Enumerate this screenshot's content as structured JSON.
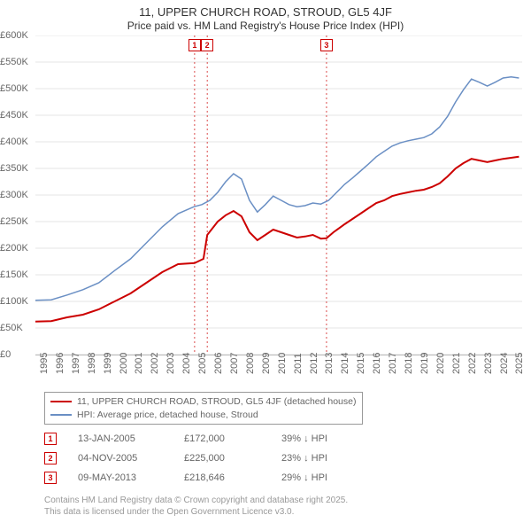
{
  "title_line1": "11, UPPER CHURCH ROAD, STROUD, GL5 4JF",
  "title_line2": "Price paid vs. HM Land Registry's House Price Index (HPI)",
  "chart": {
    "type": "line",
    "background_color": "#ffffff",
    "grid_color": "#e4e4e4",
    "axis_color": "#bbbbbb",
    "tick_font_size": 11,
    "tick_color": "#666666",
    "x": {
      "label_rotation": -90,
      "ticks": [
        "1995",
        "1996",
        "1997",
        "1998",
        "1999",
        "2000",
        "2001",
        "2002",
        "2003",
        "2004",
        "2005",
        "2006",
        "2007",
        "2008",
        "2009",
        "2010",
        "2011",
        "2012",
        "2013",
        "2014",
        "2015",
        "2016",
        "2017",
        "2018",
        "2019",
        "2020",
        "2021",
        "2022",
        "2023",
        "2024",
        "2025"
      ],
      "min_year": 1995,
      "max_year": 2025.7
    },
    "y": {
      "min": 0,
      "max": 600000,
      "ticks": [
        0,
        50000,
        100000,
        150000,
        200000,
        250000,
        300000,
        350000,
        400000,
        450000,
        500000,
        550000,
        600000
      ],
      "tick_labels": [
        "£0",
        "£50K",
        "£100K",
        "£150K",
        "£200K",
        "£250K",
        "£300K",
        "£350K",
        "£400K",
        "£450K",
        "£500K",
        "£550K",
        "£600K"
      ]
    },
    "series": [
      {
        "name": "11, UPPER CHURCH ROAD, STROUD, GL5 4JF (detached house)",
        "color": "#cc0000",
        "width": 2,
        "points": [
          [
            1995.0,
            62000
          ],
          [
            1996.0,
            63000
          ],
          [
            1997.0,
            70000
          ],
          [
            1998.0,
            75000
          ],
          [
            1999.0,
            85000
          ],
          [
            2000.0,
            100000
          ],
          [
            2001.0,
            115000
          ],
          [
            2002.0,
            135000
          ],
          [
            2003.0,
            155000
          ],
          [
            2004.0,
            170000
          ],
          [
            2005.04,
            172000
          ],
          [
            2005.6,
            180000
          ],
          [
            2005.84,
            225000
          ],
          [
            2006.5,
            250000
          ],
          [
            2007.0,
            262000
          ],
          [
            2007.5,
            270000
          ],
          [
            2008.0,
            260000
          ],
          [
            2008.5,
            230000
          ],
          [
            2009.0,
            215000
          ],
          [
            2009.5,
            225000
          ],
          [
            2010.0,
            235000
          ],
          [
            2010.5,
            230000
          ],
          [
            2011.0,
            225000
          ],
          [
            2011.5,
            220000
          ],
          [
            2012.0,
            222000
          ],
          [
            2012.5,
            225000
          ],
          [
            2013.0,
            218000
          ],
          [
            2013.36,
            218646
          ],
          [
            2013.8,
            230000
          ],
          [
            2014.5,
            245000
          ],
          [
            2015.0,
            255000
          ],
          [
            2015.5,
            265000
          ],
          [
            2016.0,
            275000
          ],
          [
            2016.5,
            285000
          ],
          [
            2017.0,
            290000
          ],
          [
            2017.5,
            298000
          ],
          [
            2018.0,
            302000
          ],
          [
            2018.5,
            305000
          ],
          [
            2019.0,
            308000
          ],
          [
            2019.5,
            310000
          ],
          [
            2020.0,
            315000
          ],
          [
            2020.5,
            322000
          ],
          [
            2021.0,
            335000
          ],
          [
            2021.5,
            350000
          ],
          [
            2022.0,
            360000
          ],
          [
            2022.5,
            368000
          ],
          [
            2023.0,
            365000
          ],
          [
            2023.5,
            362000
          ],
          [
            2024.0,
            365000
          ],
          [
            2024.5,
            368000
          ],
          [
            2025.0,
            370000
          ],
          [
            2025.5,
            372000
          ]
        ]
      },
      {
        "name": "HPI: Average price, detached house, Stroud",
        "color": "#6a8fc4",
        "width": 1.5,
        "points": [
          [
            1995.0,
            102000
          ],
          [
            1996.0,
            103000
          ],
          [
            1997.0,
            112000
          ],
          [
            1998.0,
            122000
          ],
          [
            1999.0,
            135000
          ],
          [
            2000.0,
            158000
          ],
          [
            2001.0,
            180000
          ],
          [
            2002.0,
            210000
          ],
          [
            2003.0,
            240000
          ],
          [
            2004.0,
            265000
          ],
          [
            2005.0,
            278000
          ],
          [
            2005.5,
            282000
          ],
          [
            2006.0,
            290000
          ],
          [
            2006.5,
            305000
          ],
          [
            2007.0,
            325000
          ],
          [
            2007.5,
            340000
          ],
          [
            2008.0,
            330000
          ],
          [
            2008.5,
            290000
          ],
          [
            2009.0,
            268000
          ],
          [
            2009.5,
            282000
          ],
          [
            2010.0,
            298000
          ],
          [
            2010.5,
            290000
          ],
          [
            2011.0,
            282000
          ],
          [
            2011.5,
            278000
          ],
          [
            2012.0,
            280000
          ],
          [
            2012.5,
            285000
          ],
          [
            2013.0,
            283000
          ],
          [
            2013.5,
            290000
          ],
          [
            2014.0,
            305000
          ],
          [
            2014.5,
            320000
          ],
          [
            2015.0,
            332000
          ],
          [
            2015.5,
            345000
          ],
          [
            2016.0,
            358000
          ],
          [
            2016.5,
            372000
          ],
          [
            2017.0,
            382000
          ],
          [
            2017.5,
            392000
          ],
          [
            2018.0,
            398000
          ],
          [
            2018.5,
            402000
          ],
          [
            2019.0,
            405000
          ],
          [
            2019.5,
            408000
          ],
          [
            2020.0,
            415000
          ],
          [
            2020.5,
            428000
          ],
          [
            2021.0,
            448000
          ],
          [
            2021.5,
            475000
          ],
          [
            2022.0,
            498000
          ],
          [
            2022.5,
            518000
          ],
          [
            2023.0,
            512000
          ],
          [
            2023.5,
            505000
          ],
          [
            2024.0,
            512000
          ],
          [
            2024.5,
            520000
          ],
          [
            2025.0,
            522000
          ],
          [
            2025.5,
            520000
          ]
        ]
      }
    ],
    "markers": [
      {
        "id": "1",
        "year": 2005.04,
        "color": "#cc0000",
        "dash": "2,3"
      },
      {
        "id": "2",
        "year": 2005.84,
        "color": "#cc0000",
        "dash": "2,3"
      },
      {
        "id": "3",
        "year": 2013.36,
        "color": "#cc0000",
        "dash": "2,3"
      }
    ]
  },
  "legend": {
    "items": [
      {
        "label": "11, UPPER CHURCH ROAD, STROUD, GL5 4JF (detached house)",
        "color": "#cc0000"
      },
      {
        "label": "HPI: Average price, detached house, Stroud",
        "color": "#6a8fc4"
      }
    ]
  },
  "sales": [
    {
      "id": "1",
      "date": "13-JAN-2005",
      "price": "£172,000",
      "delta": "39% ↓ HPI"
    },
    {
      "id": "2",
      "date": "04-NOV-2005",
      "price": "£225,000",
      "delta": "23% ↓ HPI"
    },
    {
      "id": "3",
      "date": "09-MAY-2013",
      "price": "£218,646",
      "delta": "29% ↓ HPI"
    }
  ],
  "attribution_line1": "Contains HM Land Registry data © Crown copyright and database right 2025.",
  "attribution_line2": "This data is licensed under the Open Government Licence v3.0."
}
